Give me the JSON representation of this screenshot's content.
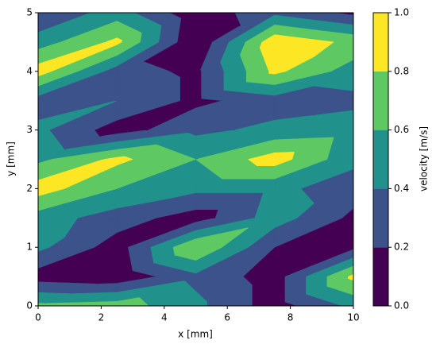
{
  "chart_data": {
    "type": "contour",
    "xlabel": "x [mm]",
    "ylabel": "y [mm]",
    "colorbar_label": "velocity [m/s]",
    "x": [
      0,
      2.5,
      5,
      7.5,
      10
    ],
    "y": [
      0,
      0.5,
      1,
      1.5,
      2,
      2.5,
      3,
      3.5,
      4,
      4.5,
      5
    ],
    "z": [
      [
        0.65,
        0.7,
        0.45,
        0.1,
        0.45
      ],
      [
        0.1,
        0.05,
        0.35,
        0.1,
        0.85
      ],
      [
        0.45,
        0.1,
        0.8,
        0.2,
        0.15
      ],
      [
        0.5,
        0.3,
        0.1,
        0.5,
        0.15
      ],
      [
        0.9,
        0.6,
        0.45,
        0.45,
        0.3
      ],
      [
        0.55,
        0.85,
        0.6,
        0.9,
        0.45
      ],
      [
        0.45,
        0.1,
        0.35,
        0.45,
        0.5
      ],
      [
        0.3,
        0.4,
        0.15,
        0.3,
        0.35
      ],
      [
        0.9,
        0.3,
        0.15,
        0.85,
        0.5
      ],
      [
        0.5,
        0.85,
        0.0,
        0.95,
        0.75
      ],
      [
        0.2,
        0.5,
        0.05,
        0.35,
        0.15
      ]
    ],
    "levels": [
      0,
      0.2,
      0.4,
      0.6,
      0.8,
      1
    ],
    "colors": [
      "#440154",
      "#3b528b",
      "#21918c",
      "#5ec962",
      "#fde725"
    ],
    "xlim": [
      0,
      10
    ],
    "ylim": [
      0,
      5
    ],
    "xticks": [
      0,
      2,
      4,
      6,
      8,
      10
    ],
    "yticks": [
      0,
      1,
      2,
      3,
      4,
      5
    ],
    "cticks": [
      {
        "value": 0,
        "label": "0.0"
      },
      0.2,
      0.4,
      0.6,
      0.8,
      {
        "value": 1,
        "label": "1.0"
      }
    ]
  }
}
